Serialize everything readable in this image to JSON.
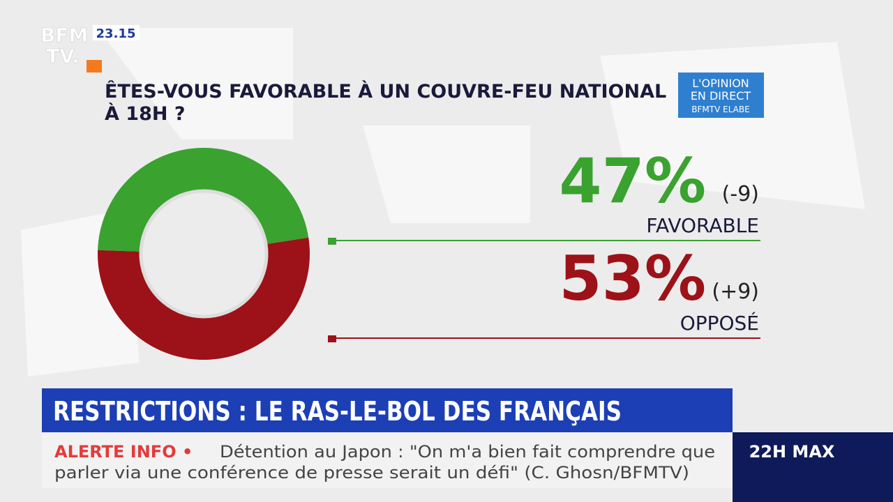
{
  "header": {
    "logo_top": "BFM",
    "logo_bottom": "TV.",
    "time": "23.15",
    "badge_line1": "L'OPINION",
    "badge_line2": "EN DIRECT",
    "badge_line3": "BFMTV ELABE"
  },
  "chart_data": {
    "type": "donut",
    "title": "ÊTES-VOUS FAVORABLE À UN COUVRE-FEU NATIONAL À 18H ?",
    "categories": [
      "FAVORABLE",
      "OPPOSÉ"
    ],
    "values": [
      47,
      53
    ],
    "value_labels": [
      "47%",
      "53%"
    ],
    "change_labels": [
      "(-9)",
      "(+9)"
    ],
    "colors": [
      "#3aa22f",
      "#9c1218"
    ]
  },
  "banner": "RESTRICTIONS : LE RAS-LE-BOL DES FRANÇAIS",
  "ticker": {
    "tag": "ALERTE INFO •",
    "line1": "Détention au Japon : \"On m'a bien fait comprendre que",
    "line2": "parler via une conférence de presse serait un défi\"  (C. Ghosn/BFMTV)",
    "side": "22H MAX"
  }
}
